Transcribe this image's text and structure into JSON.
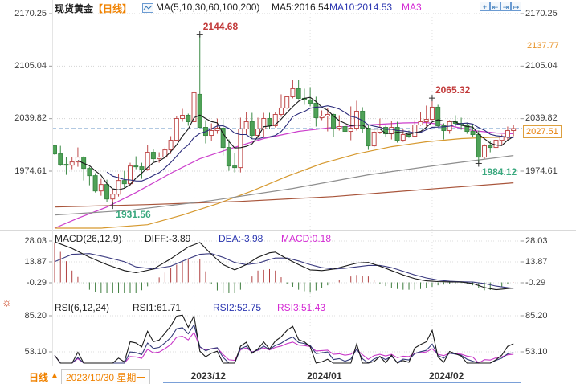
{
  "header": {
    "symbol": "现货黄金",
    "period_tag": "【日线】",
    "ma_settings": "MA(5,10,30,60,100,200)",
    "ma5": "MA5:2016.54",
    "ma10": "MA10:2014.53",
    "ma30": "MA3"
  },
  "toolbar": {
    "icons": [
      {
        "name": "crosshair-icon",
        "glyph": "+"
      },
      {
        "name": "compress-left-icon",
        "glyph": "⇤"
      },
      {
        "name": "compress-right-icon",
        "glyph": "⇥"
      },
      {
        "name": "shift-right-icon",
        "glyph": "↦"
      }
    ]
  },
  "price_axis": {
    "labels": [
      "2170.25",
      "2105.04",
      "2039.82",
      "1974.61"
    ],
    "orange_marker": "2137.77",
    "last_price_label": "2027.51"
  },
  "macd_header": {
    "title": "MACD(26,12,9)",
    "diff_label": "DIFF:-3.89",
    "dea_label": "DEA:-3.98",
    "macd_label": "MACD:0.18",
    "axis": [
      "28.03",
      "13.87",
      "-0.29"
    ]
  },
  "rsi_header": {
    "title": "RSI(6,12,24)",
    "rsi1_label": "RSI1:61.71",
    "rsi2_label": "RSI2:52.75",
    "rsi3_label": "RSI3:51.43",
    "axis": [
      "85.20",
      "53.10"
    ]
  },
  "bottom": {
    "period": "日线",
    "arrow": "▲",
    "date": "2023/10/30 星期一"
  },
  "annotations": [
    {
      "label": "2144.68",
      "price": 2144.68,
      "index": 25,
      "color": "#c23b3b",
      "side": "above"
    },
    {
      "label": "2065.32",
      "price": 2065.32,
      "index": 65,
      "color": "#c23b3b",
      "side": "above"
    },
    {
      "label": "1931.56",
      "price": 1931.56,
      "index": 10,
      "color": "#3aa87e",
      "side": "below"
    },
    {
      "label": "1984.12",
      "price": 1984.12,
      "index": 73,
      "color": "#3aa87e",
      "side": "below"
    }
  ],
  "colors": {
    "up_candle": "#bf4b4b",
    "down_candle_fill": "#4fa257",
    "down_candle_stroke": "#3c8a46",
    "accent_orange": "#f08200",
    "dashed_price_line": "#6593c6",
    "ma5": "#1a1a1a",
    "ma10": "#2a2a7a",
    "ma30": "#cc3fcc",
    "ma60": "#d6992f",
    "ma100": "#a8543a",
    "ma200": "#8e8e8e",
    "macd_bar_pos": "#b04040",
    "macd_bar_neg": "#3e7d3e",
    "diff_line": "#1a1a1a",
    "dea_line": "#3b3b80",
    "rsi1": "#1a1a1a",
    "rsi2": "#333a78",
    "rsi3": "#c837c8"
  },
  "chart_data": {
    "type": "candlestick",
    "title": "现货黄金 日线",
    "panels": [
      "price+MA",
      "MACD",
      "RSI"
    ],
    "price_axis_ticks": [
      2170.25,
      2105.04,
      2039.82,
      1974.61
    ],
    "last_price": 2027.51,
    "right_axis_orange_marker": 2137.77,
    "ma_periods": [
      5,
      10,
      30,
      60,
      100,
      200
    ],
    "ma5_last": 2016.54,
    "ma10_last": 2014.53,
    "x_ticks": [
      {
        "index": 24,
        "label": "2023/12"
      },
      {
        "index": 44,
        "label": "2024/01"
      },
      {
        "index": 65,
        "label": "2024/02"
      }
    ],
    "candles_ohlc": [
      [
        2006,
        2007,
        1995,
        1996
      ],
      [
        1996,
        2006,
        1981,
        1983
      ],
      [
        1983,
        1992,
        1970,
        1982
      ],
      [
        1982,
        1992,
        1977,
        1986
      ],
      [
        1986,
        2004,
        1980,
        1992
      ],
      [
        1992,
        1993,
        1963,
        1978
      ],
      [
        1978,
        1980,
        1957,
        1969
      ],
      [
        1969,
        1972,
        1948,
        1950
      ],
      [
        1950,
        1965,
        1944,
        1958
      ],
      [
        1958,
        1964,
        1936,
        1940
      ],
      [
        1940,
        1952,
        1931.56,
        1946
      ],
      [
        1946,
        1971,
        1943,
        1963
      ],
      [
        1963,
        1975,
        1954,
        1959
      ],
      [
        1959,
        1985,
        1956,
        1981
      ],
      [
        1981,
        1993,
        1977,
        1980
      ],
      [
        1980,
        1985,
        1965,
        1977
      ],
      [
        1977,
        2007,
        1975,
        1998
      ],
      [
        1998,
        2002,
        1986,
        1990
      ],
      [
        1990,
        1998,
        1985,
        1992
      ],
      [
        1992,
        2004,
        1990,
        2001
      ],
      [
        2001,
        2018,
        1996,
        2013
      ],
      [
        2013,
        2043,
        2012,
        2040
      ],
      [
        2040,
        2052,
        2036,
        2044
      ],
      [
        2044,
        2046,
        2031,
        2036
      ],
      [
        2036,
        2075,
        2035,
        2072
      ],
      [
        2070,
        2144.68,
        2028,
        2029
      ],
      [
        2029,
        2038,
        2009,
        2019
      ],
      [
        2019,
        2034,
        2012,
        2025
      ],
      [
        2025,
        2040,
        2021,
        2028
      ],
      [
        2028,
        2039,
        1994,
        2004
      ],
      [
        2004,
        2014,
        1975,
        1981
      ],
      [
        1981,
        1997,
        1973,
        1979
      ],
      [
        1979,
        2041,
        1973,
        2027
      ],
      [
        2027,
        2048,
        2020,
        2036
      ],
      [
        2036,
        2047,
        2015,
        2019
      ],
      [
        2019,
        2041,
        2016,
        2027
      ],
      [
        2027,
        2047,
        2017,
        2040
      ],
      [
        2040,
        2047,
        2027,
        2031
      ],
      [
        2031,
        2048,
        2029,
        2045
      ],
      [
        2045,
        2070,
        2042,
        2053
      ],
      [
        2053,
        2068,
        2052,
        2067
      ],
      [
        2067,
        2088,
        2065,
        2077
      ],
      [
        2077,
        2088,
        2064,
        2065
      ],
      [
        2065,
        2077,
        2057,
        2063
      ],
      [
        2063,
        2079,
        2055,
        2059
      ],
      [
        2059,
        2067,
        2030,
        2041
      ],
      [
        2041,
        2050,
        2038,
        2043
      ],
      [
        2043,
        2053,
        2024,
        2045
      ],
      [
        2045,
        2046,
        2017,
        2028
      ],
      [
        2028,
        2044,
        2025,
        2030
      ],
      [
        2030,
        2036,
        2016,
        2024
      ],
      [
        2024,
        2055,
        2013,
        2028
      ],
      [
        2028,
        2062,
        2025,
        2049
      ],
      [
        2049,
        2054,
        2022,
        2028
      ],
      [
        2028,
        2032,
        2001,
        2006
      ],
      [
        2006,
        2025,
        2004,
        2023
      ],
      [
        2023,
        2040,
        2021,
        2029
      ],
      [
        2029,
        2031,
        2017,
        2021
      ],
      [
        2021,
        2037,
        2014,
        2029
      ],
      [
        2029,
        2036,
        2010,
        2013
      ],
      [
        2013,
        2027,
        2011,
        2020
      ],
      [
        2020,
        2025,
        2016,
        2018
      ],
      [
        2018,
        2038,
        2017,
        2032
      ],
      [
        2032,
        2048,
        2031,
        2036
      ],
      [
        2036,
        2056,
        2030,
        2039
      ],
      [
        2039,
        2065.32,
        2038,
        2054
      ],
      [
        2054,
        2057,
        2029,
        2031
      ],
      [
        2031,
        2034,
        2014,
        2025
      ],
      [
        2025,
        2038,
        2021,
        2036
      ],
      [
        2036,
        2044,
        2030,
        2034
      ],
      [
        2034,
        2041,
        2026,
        2032
      ],
      [
        2032,
        2035,
        2021,
        2024
      ],
      [
        2024,
        2033,
        2017,
        2020
      ],
      [
        2020,
        2025,
        1984.12,
        1992
      ],
      [
        1992,
        2008,
        1990,
        2006
      ],
      [
        2006,
        2012,
        1998,
        2004
      ],
      [
        2004,
        2018,
        2002,
        2013
      ],
      [
        2013,
        2020,
        2007,
        2017
      ],
      [
        2017,
        2030,
        2012,
        2025
      ],
      [
        2025,
        2032,
        2018,
        2027.51
      ]
    ],
    "ma_curves": [
      {
        "name": "MA30",
        "color": "#cc3fcc",
        "points": [
          [
            0,
            1903
          ],
          [
            4,
            1916
          ],
          [
            9,
            1930
          ],
          [
            14,
            1948
          ],
          [
            20,
            1972
          ],
          [
            25,
            1990
          ],
          [
            30,
            2002
          ],
          [
            36,
            2015
          ],
          [
            42,
            2024
          ],
          [
            48,
            2029
          ],
          [
            54,
            2032
          ],
          [
            60,
            2034.5
          ],
          [
            64,
            2035
          ],
          [
            68,
            2031
          ],
          [
            72,
            2025
          ],
          [
            76,
            2022
          ],
          [
            79,
            2021
          ]
        ]
      },
      {
        "name": "MA60",
        "color": "#d6992f",
        "points": [
          [
            0,
            1890
          ],
          [
            8,
            1898
          ],
          [
            16,
            1908
          ],
          [
            22,
            1920
          ],
          [
            28,
            1934
          ],
          [
            34,
            1950
          ],
          [
            40,
            1968
          ],
          [
            46,
            1984
          ],
          [
            52,
            1996
          ],
          [
            58,
            2005
          ],
          [
            64,
            2011
          ],
          [
            70,
            2015
          ],
          [
            75,
            2016.5
          ],
          [
            79,
            2017
          ]
        ]
      },
      {
        "name": "MA100",
        "color": "#a8543a",
        "points": [
          [
            0,
            1930
          ],
          [
            16,
            1933
          ],
          [
            32,
            1937
          ],
          [
            48,
            1943
          ],
          [
            64,
            1952
          ],
          [
            79,
            1960
          ]
        ]
      },
      {
        "name": "MA200",
        "color": "#8e8e8e",
        "points": [
          [
            0,
            1920
          ],
          [
            13,
            1926
          ],
          [
            27,
            1938
          ],
          [
            41,
            1953
          ],
          [
            54,
            1970
          ],
          [
            66,
            1982
          ],
          [
            79,
            1994
          ]
        ]
      }
    ],
    "macd": {
      "params": [
        26,
        12,
        9
      ],
      "diff": -3.89,
      "dea": -3.98,
      "macd": 0.18,
      "axis_ticks": [
        28.03,
        13.87,
        -0.29
      ],
      "diff_points": [
        [
          0,
          27.5
        ],
        [
          3,
          23
        ],
        [
          6,
          17
        ],
        [
          9,
          12
        ],
        [
          12,
          8
        ],
        [
          14,
          6.5
        ],
        [
          17,
          9
        ],
        [
          20,
          16
        ],
        [
          23,
          24
        ],
        [
          25,
          27
        ],
        [
          27,
          19
        ],
        [
          29,
          12
        ],
        [
          31,
          8.5
        ],
        [
          33,
          12
        ],
        [
          35,
          17
        ],
        [
          37,
          20
        ],
        [
          38,
          20.5
        ],
        [
          40,
          16
        ],
        [
          42,
          12
        ],
        [
          44,
          8.5
        ],
        [
          46,
          8
        ],
        [
          48,
          9
        ],
        [
          50,
          11
        ],
        [
          52,
          13
        ],
        [
          54,
          13.5
        ],
        [
          56,
          11
        ],
        [
          58,
          8
        ],
        [
          60,
          5
        ],
        [
          62,
          2.5
        ],
        [
          64,
          1
        ],
        [
          66,
          0.5
        ],
        [
          68,
          0.3
        ],
        [
          70,
          0.2
        ],
        [
          72,
          -0.8
        ],
        [
          74,
          -3.5
        ],
        [
          76,
          -5
        ],
        [
          78,
          -4.2
        ],
        [
          79,
          -3.89
        ]
      ],
      "dea_points": [
        [
          0,
          14
        ],
        [
          3,
          19
        ],
        [
          6,
          19.5
        ],
        [
          9,
          17
        ],
        [
          12,
          14
        ],
        [
          14,
          10.5
        ],
        [
          17,
          9
        ],
        [
          20,
          11
        ],
        [
          23,
          16
        ],
        [
          25,
          19
        ],
        [
          27,
          19.5
        ],
        [
          29,
          17
        ],
        [
          31,
          13.5
        ],
        [
          33,
          12
        ],
        [
          35,
          13
        ],
        [
          37,
          15.5
        ],
        [
          38,
          16.5
        ],
        [
          40,
          16.5
        ],
        [
          42,
          14.5
        ],
        [
          44,
          12
        ],
        [
          46,
          10
        ],
        [
          48,
          9
        ],
        [
          50,
          9.5
        ],
        [
          52,
          10.5
        ],
        [
          54,
          11.5
        ],
        [
          56,
          11.5
        ],
        [
          58,
          10
        ],
        [
          60,
          7.5
        ],
        [
          62,
          5
        ],
        [
          64,
          3
        ],
        [
          66,
          1.5
        ],
        [
          68,
          0.8
        ],
        [
          70,
          0.4
        ],
        [
          72,
          0.2
        ],
        [
          74,
          -0.8
        ],
        [
          76,
          -2.5
        ],
        [
          78,
          -3.6
        ],
        [
          79,
          -3.98
        ]
      ]
    },
    "rsi": {
      "params": [
        6,
        12,
        24
      ],
      "rsi1": 61.71,
      "rsi2": 52.75,
      "rsi3": 51.43,
      "axis_ticks": [
        85.2,
        53.1
      ]
    }
  }
}
